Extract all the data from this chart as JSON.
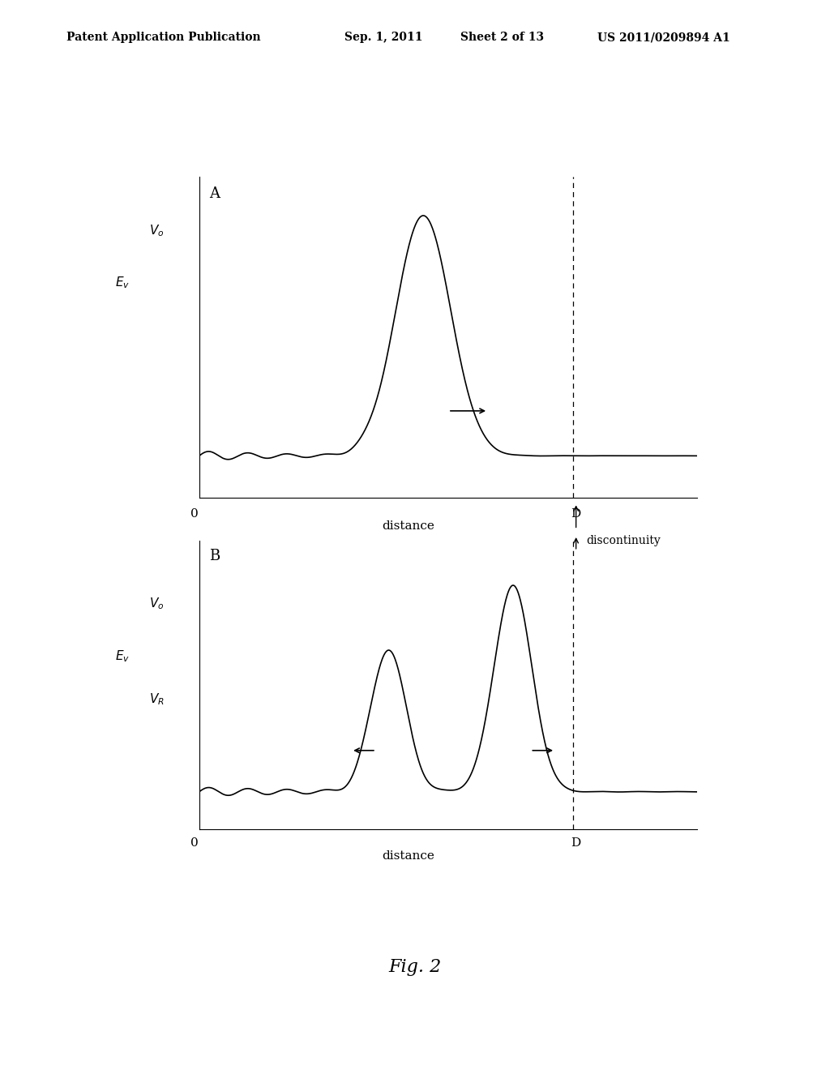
{
  "background_color": "#ffffff",
  "header_text": "Patent Application Publication",
  "header_date": "Sep. 1, 2011",
  "header_sheet": "Sheet 2 of 13",
  "header_patent": "US 2011/0209894 A1",
  "fig_label": "Fig. 2",
  "panel_A_label": "A",
  "panel_B_label": "B",
  "x_label": "distance",
  "discontinuity_label": "discontinuity",
  "line_color": "#000000",
  "dashed_line_color": "#000000",
  "text_color": "#000000"
}
